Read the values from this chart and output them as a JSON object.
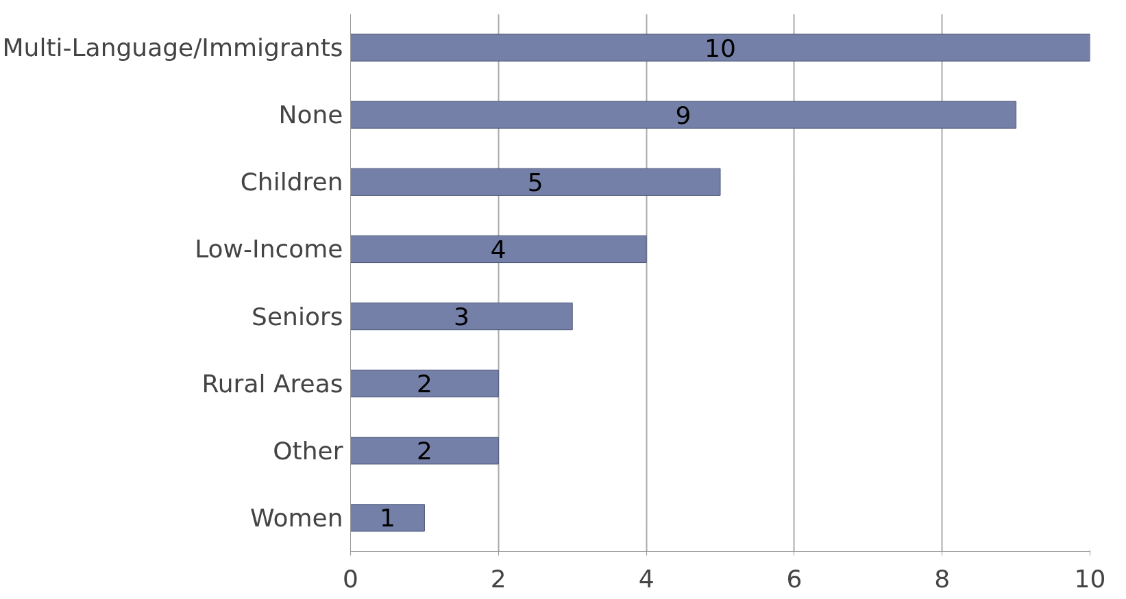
{
  "chart_data": {
    "type": "bar",
    "orientation": "horizontal",
    "categories": [
      "Multi-Language/Immigrants",
      "None",
      "Children",
      "Low-Income",
      "Seniors",
      "Rural Areas",
      "Other",
      "Women"
    ],
    "values": [
      10,
      9,
      5,
      4,
      3,
      2,
      2,
      1
    ],
    "color": "#7480a8",
    "xlim": [
      0,
      10
    ],
    "xticks": [
      0,
      2,
      4,
      6,
      8,
      10
    ],
    "grid": "x",
    "data_labels": true
  }
}
